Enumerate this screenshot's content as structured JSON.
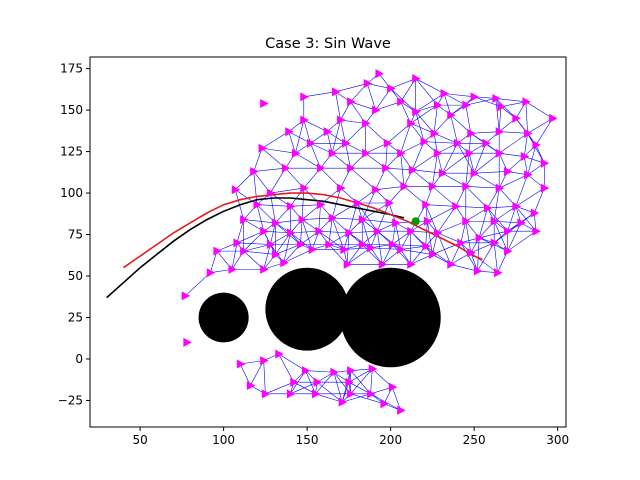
{
  "chart_data": {
    "type": "scatter",
    "title": "Case 3: Sin Wave",
    "xlabel": "",
    "ylabel": "",
    "xlim": [
      20,
      305
    ],
    "ylim": [
      -41,
      182
    ],
    "xticks": [
      50,
      100,
      150,
      200,
      250,
      300
    ],
    "yticks": [
      -25,
      0,
      25,
      50,
      75,
      100,
      125,
      150,
      175
    ],
    "grid": false,
    "legend": "none",
    "colors": {
      "obstacle": "#000000",
      "reference_path": "#000000",
      "actual_path": "#e41a1c",
      "agents": "#ff00ff",
      "edges": "#0000ff",
      "goal": "#009900"
    },
    "obstacles": [
      {
        "cx": 100,
        "cy": 25,
        "r": 15
      },
      {
        "cx": 150,
        "cy": 30,
        "r": 25
      },
      {
        "cx": 200,
        "cy": 25,
        "r": 30
      }
    ],
    "reference_path": [
      [
        30,
        37
      ],
      [
        40,
        46
      ],
      [
        50,
        55
      ],
      [
        60,
        63
      ],
      [
        70,
        71
      ],
      [
        80,
        78
      ],
      [
        90,
        84
      ],
      [
        100,
        89
      ],
      [
        110,
        93
      ],
      [
        120,
        96
      ],
      [
        130,
        97
      ],
      [
        140,
        97
      ],
      [
        150,
        96
      ],
      [
        160,
        95
      ],
      [
        170,
        93
      ],
      [
        180,
        91
      ],
      [
        190,
        89
      ],
      [
        200,
        87
      ],
      [
        208,
        85
      ]
    ],
    "actual_path": [
      [
        40,
        55
      ],
      [
        50,
        62
      ],
      [
        60,
        69
      ],
      [
        70,
        76
      ],
      [
        80,
        82
      ],
      [
        90,
        88
      ],
      [
        100,
        93
      ],
      [
        110,
        96
      ],
      [
        120,
        98
      ],
      [
        130,
        99
      ],
      [
        140,
        100
      ],
      [
        150,
        100
      ],
      [
        160,
        99
      ],
      [
        170,
        97
      ],
      [
        180,
        94
      ],
      [
        190,
        91
      ],
      [
        200,
        87
      ],
      [
        210,
        83
      ],
      [
        220,
        78
      ],
      [
        230,
        73
      ],
      [
        240,
        68
      ],
      [
        250,
        62
      ],
      [
        255,
        60
      ]
    ],
    "goal": {
      "x": 215,
      "y": 83
    },
    "agents": [
      [
        193,
        172
      ],
      [
        215,
        169
      ],
      [
        186,
        166
      ],
      [
        167,
        161
      ],
      [
        148,
        158
      ],
      [
        124,
        154
      ],
      [
        200,
        163
      ],
      [
        232,
        160
      ],
      [
        250,
        158
      ],
      [
        263,
        157
      ],
      [
        281,
        155
      ],
      [
        176,
        155
      ],
      [
        206,
        155
      ],
      [
        228,
        153
      ],
      [
        245,
        153
      ],
      [
        266,
        152
      ],
      [
        191,
        150
      ],
      [
        215,
        149
      ],
      [
        236,
        147
      ],
      [
        275,
        145
      ],
      [
        297,
        145
      ],
      [
        148,
        144
      ],
      [
        170,
        144
      ],
      [
        139,
        137
      ],
      [
        162,
        137
      ],
      [
        185,
        142
      ],
      [
        212,
        142
      ],
      [
        226,
        136
      ],
      [
        248,
        136
      ],
      [
        265,
        137
      ],
      [
        282,
        136
      ],
      [
        152,
        130
      ],
      [
        173,
        130
      ],
      [
        198,
        130
      ],
      [
        220,
        131
      ],
      [
        240,
        130
      ],
      [
        257,
        130
      ],
      [
        287,
        129
      ],
      [
        123,
        127
      ],
      [
        143,
        124
      ],
      [
        165,
        124
      ],
      [
        185,
        124
      ],
      [
        206,
        124
      ],
      [
        228,
        124
      ],
      [
        247,
        124
      ],
      [
        265,
        124
      ],
      [
        280,
        122
      ],
      [
        292,
        118
      ],
      [
        118,
        113
      ],
      [
        137,
        115
      ],
      [
        158,
        115
      ],
      [
        176,
        115
      ],
      [
        197,
        115
      ],
      [
        213,
        114
      ],
      [
        231,
        112
      ],
      [
        250,
        112
      ],
      [
        270,
        113
      ],
      [
        282,
        111
      ],
      [
        107,
        102
      ],
      [
        128,
        100
      ],
      [
        148,
        103
      ],
      [
        170,
        103
      ],
      [
        191,
        102
      ],
      [
        208,
        104
      ],
      [
        225,
        104
      ],
      [
        245,
        104
      ],
      [
        265,
        103
      ],
      [
        292,
        103
      ],
      [
        120,
        93
      ],
      [
        140,
        92
      ],
      [
        158,
        93
      ],
      [
        180,
        94
      ],
      [
        199,
        94
      ],
      [
        221,
        93
      ],
      [
        239,
        92
      ],
      [
        258,
        91
      ],
      [
        275,
        92
      ],
      [
        286,
        88
      ],
      [
        112,
        84
      ],
      [
        131,
        82
      ],
      [
        147,
        84
      ],
      [
        165,
        85
      ],
      [
        183,
        84
      ],
      [
        203,
        82
      ],
      [
        222,
        83
      ],
      [
        245,
        83
      ],
      [
        262,
        83
      ],
      [
        278,
        82
      ],
      [
        124,
        77
      ],
      [
        140,
        76
      ],
      [
        157,
        77
      ],
      [
        175,
        76
      ],
      [
        192,
        77
      ],
      [
        212,
        77
      ],
      [
        228,
        76
      ],
      [
        253,
        73
      ],
      [
        270,
        77
      ],
      [
        287,
        77
      ],
      [
        108,
        70
      ],
      [
        128,
        69
      ],
      [
        146,
        69
      ],
      [
        163,
        69
      ],
      [
        183,
        69
      ],
      [
        201,
        69
      ],
      [
        221,
        68
      ],
      [
        242,
        70
      ],
      [
        262,
        70
      ],
      [
        96,
        65
      ],
      [
        112,
        65
      ],
      [
        131,
        63
      ],
      [
        153,
        66
      ],
      [
        172,
        66
      ],
      [
        188,
        67
      ],
      [
        206,
        66
      ],
      [
        225,
        63
      ],
      [
        248,
        64
      ],
      [
        270,
        65
      ],
      [
        92,
        52
      ],
      [
        105,
        54
      ],
      [
        124,
        54
      ],
      [
        136,
        58
      ],
      [
        174,
        57
      ],
      [
        195,
        57
      ],
      [
        212,
        57
      ],
      [
        236,
        57
      ],
      [
        252,
        53
      ],
      [
        264,
        52
      ],
      [
        77,
        38
      ],
      [
        78,
        10
      ],
      [
        110,
        -3
      ],
      [
        124,
        -1
      ],
      [
        133,
        3
      ],
      [
        149,
        -7
      ],
      [
        166,
        -8
      ],
      [
        176,
        -7
      ],
      [
        189,
        -6
      ],
      [
        116,
        -16
      ],
      [
        142,
        -14
      ],
      [
        156,
        -14
      ],
      [
        175,
        -14
      ],
      [
        201,
        -17
      ],
      [
        125,
        -21
      ],
      [
        140,
        -21
      ],
      [
        155,
        -21
      ],
      [
        176,
        -21
      ],
      [
        188,
        -21
      ],
      [
        196,
        -27
      ],
      [
        206,
        -31
      ],
      [
        171,
        -26
      ]
    ]
  }
}
